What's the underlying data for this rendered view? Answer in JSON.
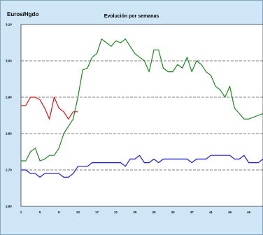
{
  "chart_data": {
    "type": "line",
    "title": "Evolución por semanas",
    "ylabel": "Euros/Hgdo",
    "xlabel": "",
    "x_ticks": [
      "1",
      "5",
      "9",
      "13",
      "17",
      "21",
      "25",
      "29",
      "33",
      "37",
      "41",
      "45",
      "49"
    ],
    "y_ticks": [
      "2,60",
      "2,70",
      "2,80",
      "2,90",
      "3,00",
      "3,10"
    ],
    "ylim": [
      2.6,
      3.1
    ],
    "xlim": [
      1,
      52
    ],
    "grid": "dashed horizontal",
    "series": [
      {
        "color": "#dd1111",
        "x": [
          1,
          2,
          3,
          4,
          5,
          6,
          7,
          8,
          9,
          10,
          11,
          12,
          13
        ],
        "values": [
          2.877,
          2.877,
          2.9,
          2.9,
          2.893,
          2.87,
          2.84,
          2.9,
          2.87,
          2.86,
          2.84,
          2.86,
          2.86
        ]
      },
      {
        "color": "#1a8a1a",
        "x": [
          1,
          2,
          3,
          4,
          5,
          6,
          7,
          8,
          9,
          10,
          11,
          12,
          13,
          14,
          15,
          16,
          17,
          18,
          19,
          20,
          21,
          22,
          23,
          24,
          25,
          26,
          27,
          28,
          29,
          30,
          31,
          32,
          33,
          34,
          35,
          36,
          37,
          38,
          39,
          40,
          41,
          42,
          43,
          44,
          45,
          46,
          47,
          48,
          49,
          50,
          51,
          52
        ],
        "values": [
          2.725,
          2.725,
          2.75,
          2.76,
          2.725,
          2.73,
          2.74,
          2.74,
          2.76,
          2.8,
          2.82,
          2.84,
          2.9,
          2.975,
          2.98,
          3.01,
          3.02,
          3.06,
          3.05,
          3.04,
          3.055,
          3.05,
          3.06,
          3.04,
          3.02,
          3.01,
          3.0,
          2.97,
          3.03,
          3.03,
          2.98,
          2.97,
          2.97,
          2.99,
          2.98,
          3.01,
          2.97,
          3.0,
          2.99,
          2.97,
          2.96,
          2.93,
          2.92,
          2.9,
          2.93,
          2.87,
          2.855,
          2.84,
          2.84,
          2.845,
          2.85,
          2.855
        ]
      },
      {
        "color": "#1a1add",
        "x": [
          1,
          2,
          3,
          4,
          5,
          6,
          7,
          8,
          9,
          10,
          11,
          12,
          13,
          14,
          15,
          16,
          17,
          18,
          19,
          20,
          21,
          22,
          23,
          24,
          25,
          26,
          27,
          28,
          29,
          30,
          31,
          32,
          33,
          34,
          35,
          36,
          37,
          38,
          39,
          40,
          41,
          42,
          43,
          44,
          45,
          46,
          47,
          48,
          49,
          50,
          51,
          52
        ],
        "values": [
          2.7,
          2.7,
          2.69,
          2.69,
          2.68,
          2.69,
          2.69,
          2.69,
          2.69,
          2.68,
          2.68,
          2.69,
          2.71,
          2.71,
          2.71,
          2.72,
          2.72,
          2.72,
          2.72,
          2.72,
          2.72,
          2.72,
          2.71,
          2.73,
          2.73,
          2.74,
          2.72,
          2.72,
          2.73,
          2.72,
          2.73,
          2.73,
          2.73,
          2.73,
          2.73,
          2.73,
          2.72,
          2.73,
          2.73,
          2.73,
          2.74,
          2.74,
          2.74,
          2.74,
          2.74,
          2.73,
          2.73,
          2.74,
          2.72,
          2.72,
          2.72,
          2.73
        ]
      }
    ]
  }
}
